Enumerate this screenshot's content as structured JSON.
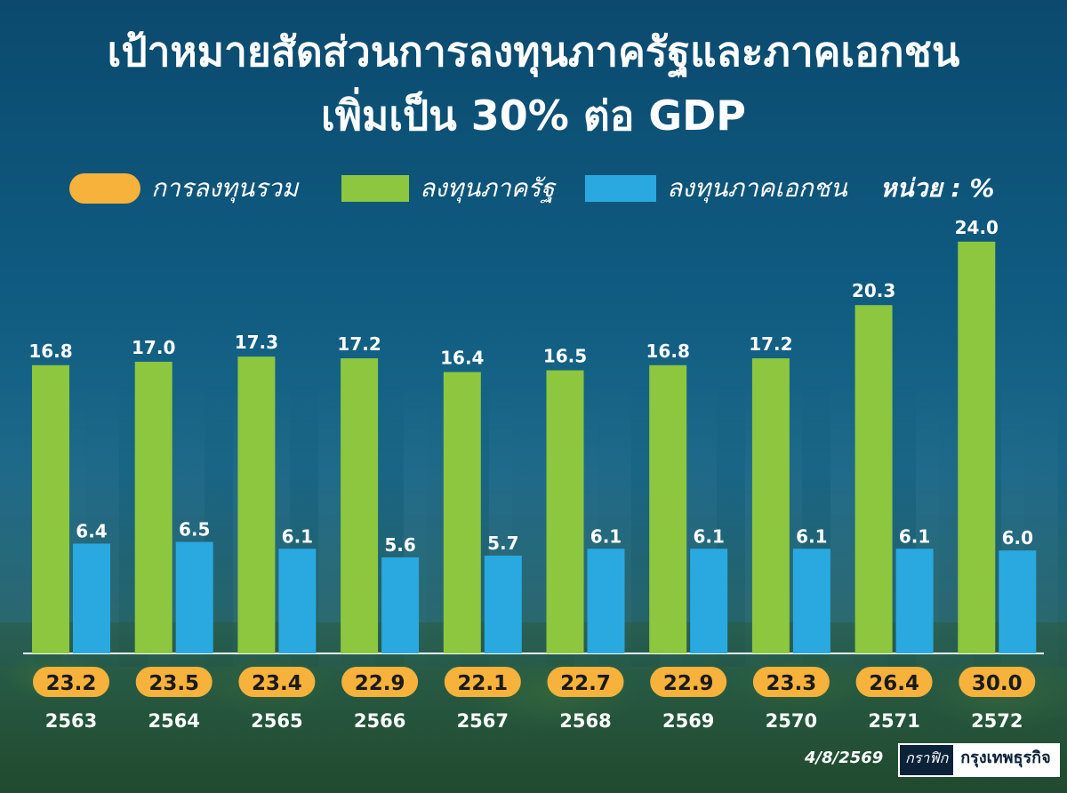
{
  "title_line1": "เป้าหมายสัดส่วนการลงทุนภาครัฐและภาคเอกชน",
  "title_line2": "เพิ่มเป็น 30% ต่อ GDP",
  "legend": {
    "total": "การลงทุนรวม",
    "government": "ลงทุนภาครัฐ",
    "private": "ลงทุนภาคเอกชน"
  },
  "unit": "หน่วย : %",
  "date": "4/8/2569",
  "credit": {
    "label": "กราฟิก",
    "brand": "กรุงเทพธุรกิจ"
  },
  "colors": {
    "total": "#f7b23b",
    "government": "#8dc63f",
    "private": "#29a9e0"
  },
  "chart_data": {
    "type": "bar",
    "categories": [
      "2563",
      "2564",
      "2565",
      "2566",
      "2567",
      "2568",
      "2569",
      "2570",
      "2571",
      "2572"
    ],
    "series": [
      {
        "name": "ลงทุนภาครัฐ",
        "values": [
          16.8,
          17.0,
          17.3,
          17.2,
          16.4,
          16.5,
          16.8,
          17.2,
          20.3,
          24.0
        ]
      },
      {
        "name": "ลงทุนภาคเอกชน",
        "values": [
          6.4,
          6.5,
          6.1,
          5.6,
          5.7,
          6.1,
          6.1,
          6.1,
          6.1,
          6.0
        ]
      },
      {
        "name": "การลงทุนรวม",
        "values": [
          23.2,
          23.5,
          23.4,
          22.9,
          22.1,
          22.7,
          22.9,
          23.3,
          26.4,
          30.0
        ]
      }
    ],
    "value_labels": {
      "government": [
        "16.8",
        "17.0",
        "17.3",
        "17.2",
        "16.4",
        "16.5",
        "16.8",
        "17.2",
        "20.3",
        "24.0"
      ],
      "private": [
        "6.4",
        "6.5",
        "6.1",
        "5.6",
        "5.7",
        "6.1",
        "6.1",
        "6.1",
        "6.1",
        "6.0"
      ],
      "total": [
        "23.2",
        "23.5",
        "23.4",
        "22.9",
        "22.1",
        "22.7",
        "22.9",
        "23.3",
        "26.4",
        "30.0"
      ]
    },
    "ylabel": "",
    "grid": false,
    "legend_position": "top"
  }
}
